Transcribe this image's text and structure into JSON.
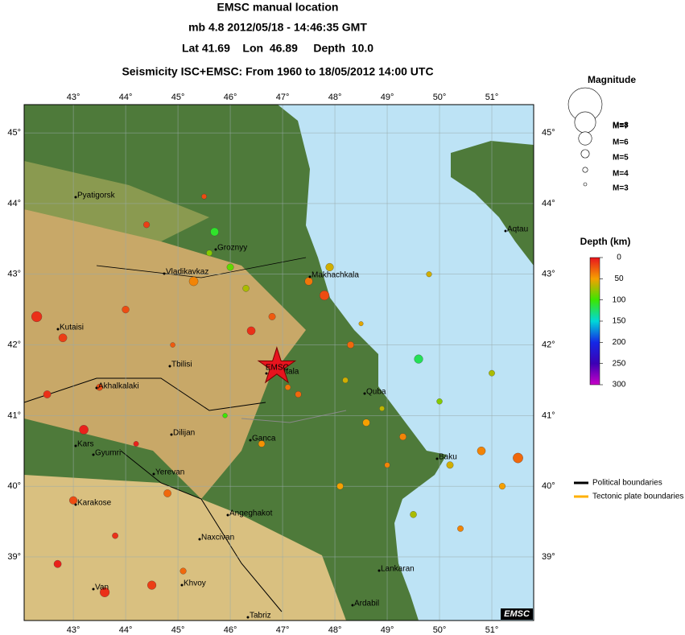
{
  "header": {
    "title": "EMSC manual location",
    "event": "mb 4.8  2012/05/18 - 14:46:35 GMT",
    "location": "Lat 41.69    Lon  46.89     Depth  10.0",
    "seismicity": "Seismicity ISC+EMSC: From 1960 to 18/05/2012 14:00 UTC"
  },
  "map": {
    "xlim": [
      42.06,
      51.8
    ],
    "ylim": [
      38.1,
      45.4
    ],
    "xticks": [
      {
        "value": 43,
        "label": "43°"
      },
      {
        "value": 44,
        "label": "44°"
      },
      {
        "value": 45,
        "label": "45°"
      },
      {
        "value": 46,
        "label": "46°"
      },
      {
        "value": 47,
        "label": "47°"
      },
      {
        "value": 48,
        "label": "48°"
      },
      {
        "value": 49,
        "label": "49°"
      },
      {
        "value": 50,
        "label": "50°"
      },
      {
        "value": 51,
        "label": "51°"
      }
    ],
    "yticks": [
      {
        "value": 39,
        "label": "39°"
      },
      {
        "value": 40,
        "label": "40°"
      },
      {
        "value": 41,
        "label": "41°"
      },
      {
        "value": 42,
        "label": "42°"
      },
      {
        "value": 43,
        "label": "43°"
      },
      {
        "value": 44,
        "label": "44°"
      },
      {
        "value": 45,
        "label": "45°"
      }
    ],
    "epicenter": {
      "lon": 46.89,
      "lat": 41.69,
      "label": "EMSC"
    },
    "events": {
      "lon": [
        42.3,
        42.8,
        43.5,
        44.2,
        44.8,
        45.3,
        45.6,
        46.0,
        46.4,
        46.9,
        47.3,
        47.8,
        48.2,
        48.6,
        49.0,
        49.5,
        50.2,
        50.8,
        51.5,
        43.0,
        43.8,
        44.5,
        45.1,
        45.9,
        46.6,
        47.5,
        48.3,
        48.9,
        49.6,
        50.4,
        51.2,
        42.5,
        43.2,
        44.0,
        44.9,
        45.7,
        46.3,
        47.1,
        47.9,
        48.5,
        49.3,
        50.0,
        42.7,
        43.6,
        44.4,
        45.5,
        46.8,
        48.1,
        49.8,
        51.0
      ],
      "lat": [
        42.4,
        42.1,
        41.4,
        40.6,
        39.9,
        42.9,
        43.3,
        43.1,
        42.2,
        41.7,
        41.3,
        42.7,
        41.5,
        40.9,
        40.3,
        39.6,
        40.3,
        40.5,
        40.4,
        39.8,
        39.3,
        38.6,
        38.8,
        41.0,
        40.6,
        42.9,
        42.0,
        41.1,
        41.8,
        39.4,
        40.0,
        41.3,
        40.8,
        42.5,
        42.0,
        43.6,
        42.8,
        41.4,
        43.1,
        42.3,
        40.7,
        41.2,
        38.9,
        38.5,
        43.7,
        44.1,
        42.4,
        40.0,
        43.0,
        41.6
      ],
      "magnitude": [
        5.5,
        5.0,
        4.5,
        4.0,
        4.8,
        5.2,
        4.3,
        4.6,
        5.0,
        4.8,
        4.4,
        5.3,
        4.2,
        4.7,
        4.1,
        4.5,
        4.6,
        5.0,
        5.4,
        4.9,
        4.3,
        5.1,
        4.4,
        3.8,
        4.5,
        4.9,
        4.6,
        4.0,
        5.1,
        4.3,
        4.4,
        4.8,
        5.2,
        4.7,
        3.9,
        5.0,
        4.5,
        4.2,
        4.9,
        3.7,
        4.6,
        4.2,
        4.8,
        5.3,
        4.4,
        4.0,
        4.6,
        4.5,
        4.1,
        4.3
      ],
      "depth": [
        10,
        15,
        20,
        5,
        30,
        40,
        80,
        90,
        10,
        10,
        30,
        20,
        60,
        50,
        40,
        70,
        60,
        40,
        30,
        20,
        10,
        15,
        30,
        100,
        45,
        35,
        30,
        65,
        120,
        40,
        50,
        10,
        5,
        20,
        25,
        110,
        70,
        35,
        60,
        55,
        40,
        80,
        5,
        10,
        15,
        20,
        25,
        50,
        60,
        70
      ]
    },
    "cities": [
      "Pyatigorsk",
      "Groznyy",
      "Vladikavkaz",
      "Makhachkala",
      "Kutaisi",
      "Tbilisi",
      "Zakatala",
      "Akhalkalaki",
      "Quba",
      "Gyumri",
      "Dilijan",
      "Ganca",
      "Kars",
      "Baku",
      "Yerevan",
      "Karakose",
      "Angeghakot",
      "Naxcivan",
      "Lankaran",
      "Khvoy",
      "Van",
      "Ardabil",
      "Tabriz",
      "Aqtau"
    ],
    "badge": "EMSC"
  },
  "magnitude_legend": {
    "title": "Magnitude",
    "items": [
      {
        "value": 8,
        "label": "M=8"
      },
      {
        "value": 7,
        "label": "M=7"
      },
      {
        "value": 6,
        "label": "M=6"
      },
      {
        "value": 5,
        "label": "M=5"
      },
      {
        "value": 4,
        "label": "M=4"
      },
      {
        "value": 3,
        "label": "M=3"
      }
    ]
  },
  "depth_legend": {
    "title": "Depth (km)",
    "ticks": [
      0,
      50,
      100,
      150,
      200,
      250,
      300
    ],
    "colors": [
      "#e8141e",
      "#f5a000",
      "#3ce600",
      "#00d8d8",
      "#1428e6",
      "#3c00b4",
      "#c800c8"
    ]
  },
  "boundary_legend": [
    {
      "label": "Political boundaries",
      "color": "#000000"
    },
    {
      "label": "Tectonic plate boundaries",
      "color": "#ffb000"
    }
  ]
}
